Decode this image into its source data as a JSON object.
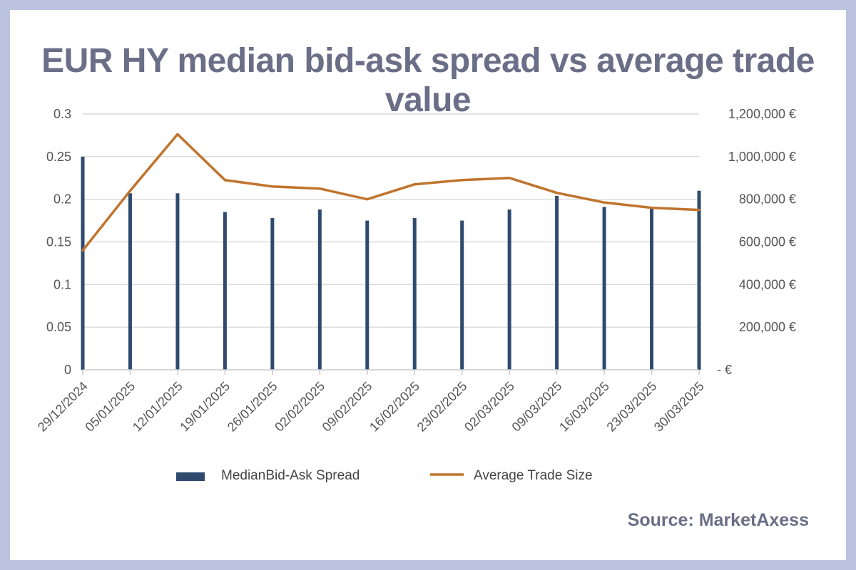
{
  "title": "EUR HY median bid-ask spread vs average trade value",
  "source": "Source: MarketAxess",
  "colors": {
    "background": "#bcc3e0",
    "title": "#6b6e87",
    "bars": "#2f4a6e",
    "line": "#c0742e",
    "grid": "#d4d4d4"
  },
  "chart_data": {
    "type": "bar",
    "categories": [
      "29/12/2024",
      "05/01/2025",
      "12/01/2025",
      "19/01/2025",
      "26/01/2025",
      "02/02/2025",
      "09/02/2025",
      "16/02/2025",
      "23/02/2025",
      "02/03/2025",
      "09/03/2025",
      "16/03/2025",
      "23/03/2025",
      "30/03/2025"
    ],
    "series": [
      {
        "name": "MedianBid-Ask Spread",
        "type": "bar",
        "axis": "left",
        "values": [
          0.25,
          0.207,
          0.207,
          0.185,
          0.178,
          0.188,
          0.175,
          0.178,
          0.175,
          0.188,
          0.204,
          0.191,
          0.191,
          0.21
        ]
      },
      {
        "name": "Average Trade Size",
        "type": "line",
        "axis": "right",
        "values": [
          560000,
          840000,
          1105000,
          890000,
          860000,
          850000,
          800000,
          870000,
          890000,
          900000,
          830000,
          785000,
          760000,
          750000
        ]
      }
    ],
    "y_left": {
      "ylim": [
        0,
        0.3
      ],
      "ticks": [
        0,
        0.05,
        0.1,
        0.15,
        0.2,
        0.25,
        0.3
      ],
      "tick_labels": [
        "0",
        "0.05",
        "0.1",
        "0.15",
        "0.2",
        "0.25",
        "0.3"
      ]
    },
    "y_right": {
      "ylim": [
        0,
        1200000
      ],
      "ticks": [
        0,
        200000,
        400000,
        600000,
        800000,
        1000000,
        1200000
      ],
      "tick_labels": [
        " -  €",
        "200,000 €",
        "400,000 €",
        "600,000 €",
        "800,000 €",
        "1,000,000 €",
        "1,200,000 €"
      ]
    },
    "xlabel": "",
    "grid": true,
    "legend_position": "bottom"
  }
}
